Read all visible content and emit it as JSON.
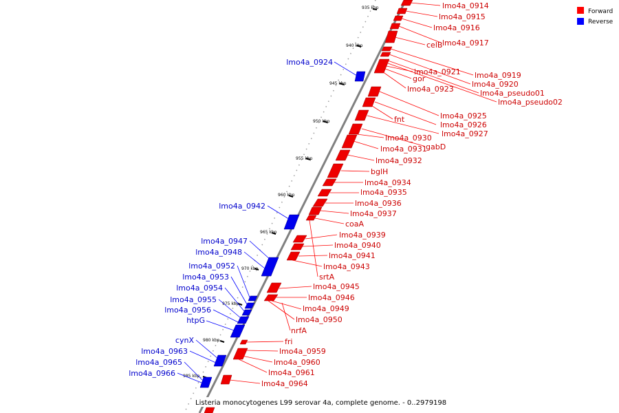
{
  "legend": {
    "forward": {
      "label": "Forward",
      "color": "#ff0000"
    },
    "reverse": {
      "label": "Reverse",
      "color": "#0000ff"
    }
  },
  "caption": "Listeria monocytogenes L99 serovar 4a, complete genome. - 0..2979198",
  "ticks": [
    "935 kbp",
    "940 kbp",
    "945 kbp",
    "950 kbp",
    "955 kbp",
    "960 kbp",
    "965 kbp",
    "970 kbp",
    "975 kbp",
    "980 kbp",
    "985 kbp"
  ],
  "forward_labels": [
    "lmo4a_0914",
    "lmo4a_0915",
    "lmo4a_0916",
    "celB",
    "lmo4a_0917",
    "lmo4a_0919",
    "lmo4a_0921",
    "gor",
    "lmo4a_0920",
    "lmo4a_pseudo01",
    "lmo4a_0923",
    "lmo4a_pseudo02",
    "lmo4a_0925",
    "fnt",
    "lmo4a_0926",
    "lmo4a_0927",
    "lmo4a_0930",
    "gabD",
    "lmo4a_0931",
    "lmo4a_0932",
    "bglH",
    "lmo4a_0934",
    "lmo4a_0935",
    "lmo4a_0936",
    "lmo4a_0937",
    "coaA",
    "lmo4a_0939",
    "lmo4a_0940",
    "lmo4a_0941",
    "lmo4a_0943",
    "srtA",
    "lmo4a_0945",
    "lmo4a_0946",
    "lmo4a_0949",
    "lmo4a_0950",
    "nrfA",
    "fri",
    "lmo4a_0959",
    "lmo4a_0960",
    "lmo4a_0961",
    "lmo4a_0964"
  ],
  "reverse_labels": [
    "lmo4a_0924",
    "lmo4a_0942",
    "lmo4a_0947",
    "lmo4a_0948",
    "lmo4a_0952",
    "lmo4a_0953",
    "lmo4a_0954",
    "lmo4a_0955",
    "lmo4a_0956",
    "htpG",
    "cynX",
    "lmo4a_0963",
    "lmo4a_0965",
    "lmo4a_0966"
  ]
}
